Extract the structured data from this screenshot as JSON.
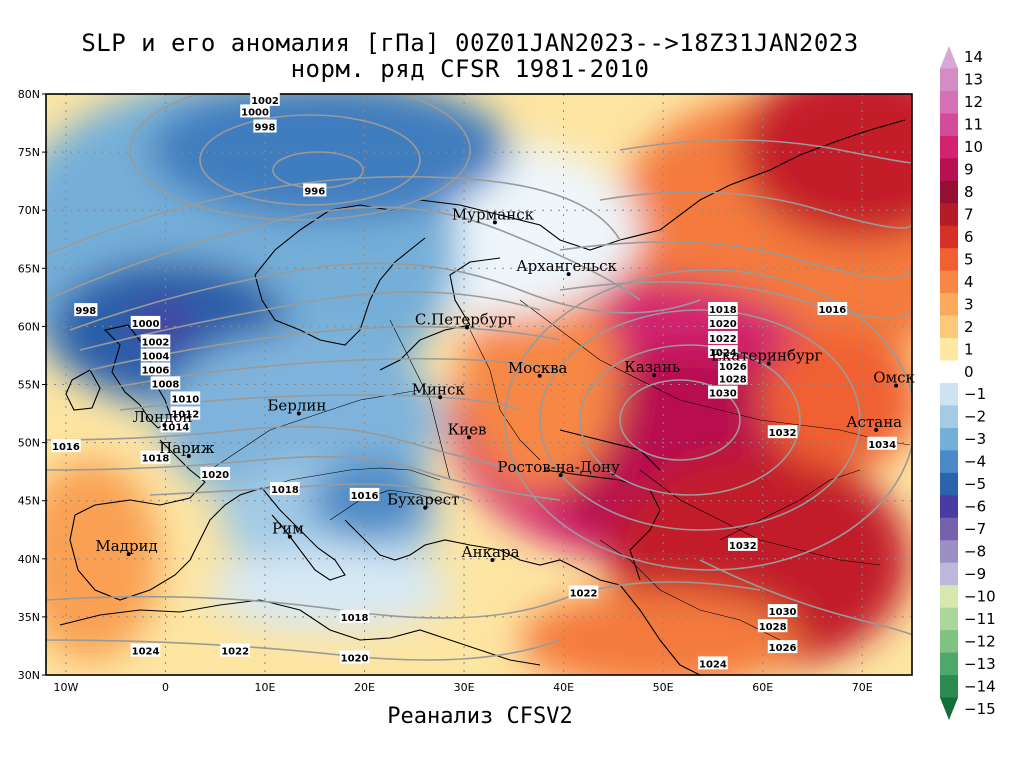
{
  "title": {
    "line1": "SLP и его аномалия [гПа] 00Z01JAN2023-->18Z31JAN2023",
    "line2": "норм. ряд CFSR 1981-2010"
  },
  "footer": "Реанализ CFSV2",
  "axes": {
    "lat_labels": [
      "80N",
      "75N",
      "70N",
      "65N",
      "60N",
      "55N",
      "50N",
      "45N",
      "40N",
      "35N",
      "30N"
    ],
    "lon_labels": [
      "10W",
      "0",
      "10E",
      "20E",
      "30E",
      "40E",
      "50E",
      "60E",
      "70E"
    ],
    "lon_range": [
      -12,
      75
    ],
    "lat_range": [
      30,
      80
    ]
  },
  "cities": [
    {
      "name": "Мурманск",
      "lon": 33.1,
      "lat": 68.95
    },
    {
      "name": "Архангельск",
      "lon": 40.5,
      "lat": 64.5
    },
    {
      "name": "С.Петербург",
      "lon": 30.3,
      "lat": 59.9
    },
    {
      "name": "Москва",
      "lon": 37.6,
      "lat": 55.75
    },
    {
      "name": "Казань",
      "lon": 49.1,
      "lat": 55.8
    },
    {
      "name": "Екатеринбург",
      "lon": 60.6,
      "lat": 56.8
    },
    {
      "name": "Омск",
      "lon": 73.4,
      "lat": 54.9
    },
    {
      "name": "Астана",
      "lon": 71.4,
      "lat": 51.1
    },
    {
      "name": "Минск",
      "lon": 27.6,
      "lat": 53.9
    },
    {
      "name": "Берлин",
      "lon": 13.4,
      "lat": 52.5
    },
    {
      "name": "Лондон",
      "lon": -0.1,
      "lat": 51.5
    },
    {
      "name": "Киев",
      "lon": 30.5,
      "lat": 50.45
    },
    {
      "name": "Париж",
      "lon": 2.35,
      "lat": 48.85
    },
    {
      "name": "Ростов-на-Дону",
      "lon": 39.7,
      "lat": 47.2
    },
    {
      "name": "Бухарест",
      "lon": 26.1,
      "lat": 44.4
    },
    {
      "name": "Рим",
      "lon": 12.5,
      "lat": 41.9
    },
    {
      "name": "Мадрид",
      "lon": -3.7,
      "lat": 40.4
    },
    {
      "name": "Анкара",
      "lon": 32.85,
      "lat": 39.9
    }
  ],
  "isobar_labels": [
    {
      "text": "1002",
      "lon": 10,
      "lat": 79.5
    },
    {
      "text": "1000",
      "lon": 9,
      "lat": 78.5
    },
    {
      "text": "998",
      "lon": 10,
      "lat": 77.2
    },
    {
      "text": "996",
      "lon": 15,
      "lat": 71.7
    },
    {
      "text": "998",
      "lon": -8,
      "lat": 61.4
    },
    {
      "text": "1000",
      "lon": -2,
      "lat": 60.3
    },
    {
      "text": "1002",
      "lon": -1,
      "lat": 58.7
    },
    {
      "text": "1004",
      "lon": -1,
      "lat": 57.5
    },
    {
      "text": "1006",
      "lon": -1,
      "lat": 56.3
    },
    {
      "text": "1008",
      "lon": 0,
      "lat": 55.1
    },
    {
      "text": "1010",
      "lon": 2,
      "lat": 53.8
    },
    {
      "text": "1012",
      "lon": 2,
      "lat": 52.5
    },
    {
      "text": "1014",
      "lon": 1,
      "lat": 51.4
    },
    {
      "text": "1016",
      "lon": -10,
      "lat": 49.7
    },
    {
      "text": "1018",
      "lon": -1,
      "lat": 48.7
    },
    {
      "text": "1020",
      "lon": 5,
      "lat": 47.3
    },
    {
      "text": "1018",
      "lon": 12,
      "lat": 46.0
    },
    {
      "text": "1016",
      "lon": 20,
      "lat": 45.5
    },
    {
      "text": "1018",
      "lon": 56,
      "lat": 61.5
    },
    {
      "text": "1020",
      "lon": 56,
      "lat": 60.3
    },
    {
      "text": "1022",
      "lon": 56,
      "lat": 59.0
    },
    {
      "text": "1024",
      "lon": 56,
      "lat": 57.8
    },
    {
      "text": "1026",
      "lon": 57,
      "lat": 56.6
    },
    {
      "text": "1028",
      "lon": 57,
      "lat": 55.5
    },
    {
      "text": "1030",
      "lon": 56,
      "lat": 54.3
    },
    {
      "text": "1016",
      "lon": 67,
      "lat": 61.5
    },
    {
      "text": "1032",
      "lon": 62,
      "lat": 50.9
    },
    {
      "text": "1034",
      "lon": 72,
      "lat": 49.9
    },
    {
      "text": "1032",
      "lon": 58,
      "lat": 41.2
    },
    {
      "text": "1022",
      "lon": 42,
      "lat": 37.1
    },
    {
      "text": "1018",
      "lon": 19,
      "lat": 35.0
    },
    {
      "text": "1024",
      "lon": -2,
      "lat": 32.1
    },
    {
      "text": "1022",
      "lon": 7,
      "lat": 32.1
    },
    {
      "text": "1020",
      "lon": 19,
      "lat": 31.5
    },
    {
      "text": "1024",
      "lon": 55,
      "lat": 31.0
    },
    {
      "text": "1030",
      "lon": 62,
      "lat": 35.5
    },
    {
      "text": "1028",
      "lon": 61,
      "lat": 34.2
    },
    {
      "text": "1026",
      "lon": 62,
      "lat": 32.4
    }
  ],
  "colorbar": {
    "labels": [
      "14",
      "13",
      "12",
      "11",
      "10",
      "9",
      "8",
      "7",
      "6",
      "5",
      "4",
      "3",
      "2",
      "1",
      "0",
      "-1",
      "-2",
      "-3",
      "-4",
      "-5",
      "-6",
      "-7",
      "-8",
      "-9",
      "-10",
      "-11",
      "-12",
      "-13",
      "-14",
      "-15"
    ],
    "colors": [
      "#d6a8d8",
      "#d38cc4",
      "#d770b4",
      "#d24c99",
      "#d3236f",
      "#b8114f",
      "#941033",
      "#b51c2a",
      "#d73027",
      "#f06032",
      "#f78745",
      "#fba95b",
      "#fcc97a",
      "#fde9a4",
      "#ffffff",
      "#cfe3f2",
      "#a3cbe6",
      "#74afd8",
      "#4b8ac7",
      "#2c63ad",
      "#4a3aa3",
      "#7561ae",
      "#9b8fc4",
      "#bdb8db",
      "#d6e8b0",
      "#abd69e",
      "#7fc383",
      "#4fa86b",
      "#2b8b51",
      "#116f3a"
    ]
  }
}
